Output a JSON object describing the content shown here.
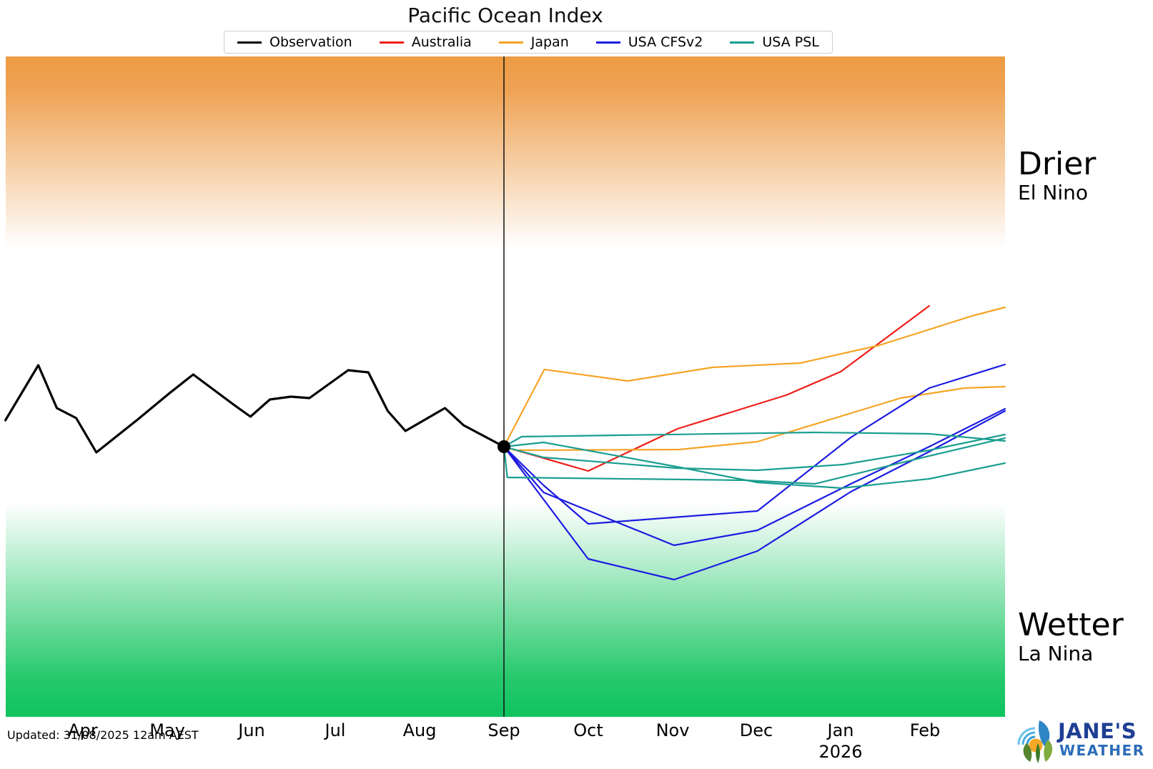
{
  "title": "Pacific Ocean Index",
  "updated_text": "Updated: 31/08/2025 12am AEST",
  "legend": {
    "items": [
      {
        "label": "Observation",
        "color": "#000000"
      },
      {
        "label": "Australia",
        "color": "#ee1f1a"
      },
      {
        "label": "Japan",
        "color": "#f5a425"
      },
      {
        "label": "USA CFSv2",
        "color": "#1c1ce0"
      },
      {
        "label": "USA PSL",
        "color": "#1a9e90"
      }
    ]
  },
  "annotations": {
    "drier": {
      "title": "Drier",
      "subtitle": "El Nino"
    },
    "wetter": {
      "title": "Wetter",
      "subtitle": "La Nina"
    }
  },
  "logo": {
    "line1": "JANE'S",
    "line2": "WEATHER",
    "line1_color": "#1e3f94",
    "line2_color": "#2b6cb8"
  },
  "chart_data": {
    "type": "line",
    "title": "Pacific Ocean Index",
    "x_axis": {
      "tick_labels": [
        "Apr",
        "May",
        "Jun",
        "Jul",
        "Aug",
        "Sep",
        "Oct",
        "Nov",
        "Dec",
        "Jan",
        "Feb"
      ],
      "year_label": "2026",
      "year_under_tick": "Jan",
      "range_in_tick_units": [
        -0.92,
        10.95
      ]
    },
    "y_axis": {
      "visible": false,
      "units": "index (0 = latest observation; positive = drier/El Nino, negative = wetter/La Nina)",
      "range": [
        -3.78,
        5.46
      ]
    },
    "grid": false,
    "legend_position": "top-center",
    "now_marker": {
      "x": 5.0,
      "y": 0.0,
      "style": "black dot + vertical line at Sep"
    },
    "bands": [
      {
        "label": "Drier",
        "sublabel": "El Nino",
        "color": "#ed9b43",
        "v_top": 5.46,
        "v_bottom": 2.78,
        "gradient": "solid orange at top fading to white"
      },
      {
        "label": "Wetter",
        "sublabel": "La Nina",
        "color": "#0fc35e",
        "v_top": -0.8,
        "v_bottom": -3.78,
        "gradient": "white fading to solid green at bottom"
      }
    ],
    "series": [
      {
        "name": "Observation",
        "model": "Observation",
        "color": "#000000",
        "width": 3.2,
        "points": [
          [
            -0.92,
            0.37
          ],
          [
            -0.53,
            1.14
          ],
          [
            -0.31,
            0.54
          ],
          [
            -0.08,
            0.4
          ],
          [
            0.16,
            -0.08
          ],
          [
            0.65,
            0.38
          ],
          [
            1.03,
            0.75
          ],
          [
            1.31,
            1.01
          ],
          [
            1.8,
            0.58
          ],
          [
            1.99,
            0.42
          ],
          [
            2.22,
            0.66
          ],
          [
            2.47,
            0.7
          ],
          [
            2.69,
            0.68
          ],
          [
            3.15,
            1.07
          ],
          [
            3.39,
            1.04
          ],
          [
            3.62,
            0.5
          ],
          [
            3.83,
            0.22
          ],
          [
            4.3,
            0.54
          ],
          [
            4.52,
            0.3
          ],
          [
            5.0,
            0.0
          ]
        ]
      },
      {
        "name": "Australia",
        "model": "Australia",
        "color": "#ee1f1a",
        "width": 2.2,
        "points": [
          [
            5.0,
            0.0
          ],
          [
            6.0,
            -0.34
          ],
          [
            7.06,
            0.25
          ],
          [
            8.35,
            0.72
          ],
          [
            9.0,
            1.05
          ],
          [
            10.05,
            1.97
          ]
        ]
      },
      {
        "name": "Japan member 1",
        "model": "Japan",
        "color": "#f5a425",
        "width": 2.2,
        "points": [
          [
            5.0,
            0.0
          ],
          [
            5.48,
            1.08
          ],
          [
            6.47,
            0.92
          ],
          [
            7.48,
            1.11
          ],
          [
            8.52,
            1.17
          ],
          [
            9.46,
            1.42
          ],
          [
            10.56,
            1.83
          ],
          [
            10.95,
            1.95
          ]
        ]
      },
      {
        "name": "Japan member 2",
        "model": "Japan",
        "color": "#f5a425",
        "width": 2.2,
        "points": [
          [
            5.0,
            0.0
          ],
          [
            5.13,
            -0.05
          ],
          [
            7.08,
            -0.04
          ],
          [
            8.01,
            0.07
          ],
          [
            9.07,
            0.45
          ],
          [
            9.71,
            0.68
          ],
          [
            10.47,
            0.82
          ],
          [
            10.95,
            0.84
          ]
        ]
      },
      {
        "name": "USA CFSv2 member 1",
        "model": "USA CFSv2",
        "color": "#1c1ce0",
        "width": 2.2,
        "points": [
          [
            5.0,
            0.0
          ],
          [
            5.47,
            -0.54
          ],
          [
            6.0,
            -1.08
          ],
          [
            8.01,
            -0.9
          ],
          [
            9.12,
            0.13
          ],
          [
            10.05,
            0.82
          ],
          [
            10.95,
            1.15
          ]
        ]
      },
      {
        "name": "USA CFSv2 member 2",
        "model": "USA CFSv2",
        "color": "#1c1ce0",
        "width": 2.2,
        "points": [
          [
            5.0,
            0.0
          ],
          [
            5.47,
            -0.64
          ],
          [
            7.02,
            -1.38
          ],
          [
            8.01,
            -1.17
          ],
          [
            9.12,
            -0.52
          ],
          [
            10.05,
            0.0
          ],
          [
            10.95,
            0.53
          ]
        ]
      },
      {
        "name": "USA CFSv2 member 3",
        "model": "USA CFSv2",
        "color": "#1c1ce0",
        "width": 2.2,
        "points": [
          [
            5.0,
            0.0
          ],
          [
            6.0,
            -1.57
          ],
          [
            7.02,
            -1.86
          ],
          [
            8.01,
            -1.46
          ],
          [
            9.12,
            -0.63
          ],
          [
            10.05,
            -0.07
          ],
          [
            10.95,
            0.5
          ]
        ]
      },
      {
        "name": "USA PSL member 1",
        "model": "USA PSL",
        "color": "#1a9e90",
        "width": 2.2,
        "points": [
          [
            5.0,
            0.0
          ],
          [
            5.21,
            0.14
          ],
          [
            8.69,
            0.2
          ],
          [
            10.05,
            0.18
          ],
          [
            10.95,
            0.08
          ]
        ]
      },
      {
        "name": "USA PSL member 2",
        "model": "USA PSL",
        "color": "#1a9e90",
        "width": 2.2,
        "points": [
          [
            5.0,
            0.0
          ],
          [
            5.47,
            0.06
          ],
          [
            7.05,
            -0.28
          ],
          [
            8.01,
            -0.5
          ],
          [
            9.01,
            -0.58
          ],
          [
            10.05,
            -0.45
          ],
          [
            10.95,
            -0.23
          ]
        ]
      },
      {
        "name": "USA PSL member 3",
        "model": "USA PSL",
        "color": "#1a9e90",
        "width": 2.2,
        "points": [
          [
            5.0,
            0.0
          ],
          [
            5.47,
            -0.15
          ],
          [
            7.05,
            -0.3
          ],
          [
            8.01,
            -0.33
          ],
          [
            9.03,
            -0.25
          ],
          [
            10.05,
            -0.05
          ],
          [
            10.95,
            0.17
          ]
        ]
      },
      {
        "name": "USA PSL member 4",
        "model": "USA PSL",
        "color": "#1a9e90",
        "width": 2.2,
        "points": [
          [
            5.0,
            0.0
          ],
          [
            5.04,
            -0.43
          ],
          [
            7.87,
            -0.47
          ],
          [
            8.69,
            -0.52
          ],
          [
            10.05,
            -0.13
          ],
          [
            10.95,
            0.12
          ]
        ]
      }
    ]
  }
}
